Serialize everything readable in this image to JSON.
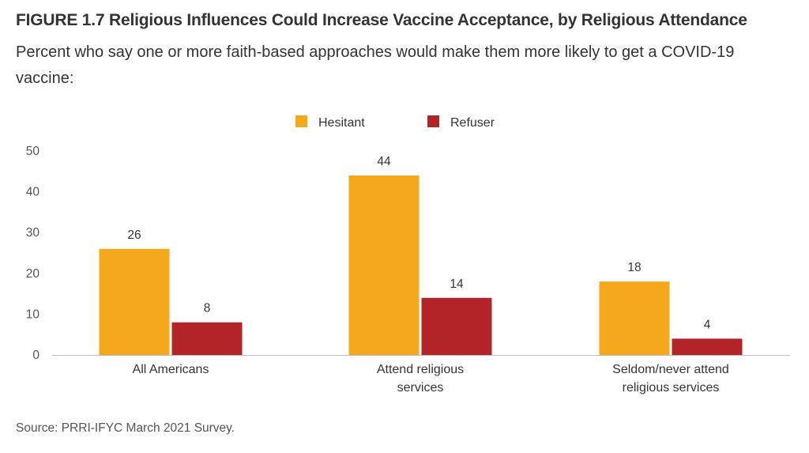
{
  "figure": {
    "title": "FIGURE 1.7  Religious Influences Could Increase Vaccine Acceptance, by Religious Attendance",
    "subtitle": "Percent who say one or more faith-based approaches would make them more likely to get a COVID-19 vaccine:",
    "source": "Source: PRRI-IFYC March 2021 Survey."
  },
  "chart_data": {
    "type": "bar",
    "categories": [
      [
        "All Americans"
      ],
      [
        "Attend religious",
        "services"
      ],
      [
        "Seldom/never attend",
        "religious services"
      ]
    ],
    "series": [
      {
        "name": "Hesitant",
        "values": [
          26,
          44,
          18
        ],
        "color": "#F5A81C"
      },
      {
        "name": "Refuser",
        "values": [
          8,
          14,
          4
        ],
        "color": "#B22428"
      }
    ],
    "ylim": [
      0,
      50
    ],
    "yticks": [
      0,
      10,
      20,
      30,
      40,
      50
    ],
    "grid": false,
    "legend_position": "top-center",
    "title": "Religious Influences Could Increase Vaccine Acceptance, by Religious Attendance",
    "xlabel": "",
    "ylabel": ""
  }
}
